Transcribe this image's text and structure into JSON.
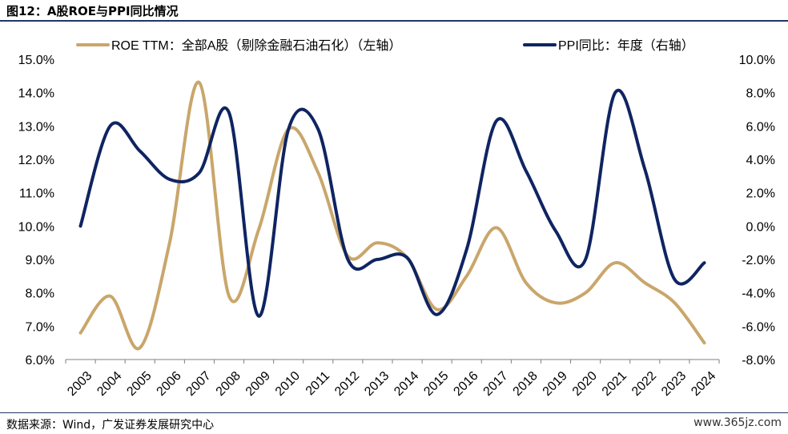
{
  "title": "图12：A股ROE与PPI同比情况",
  "source": "数据来源：Wind，广发证券发展研究中心",
  "watermark": "www.365jz.com",
  "chart_data": {
    "type": "line",
    "x": [
      "2003",
      "2004",
      "2005",
      "2006",
      "2007",
      "2008",
      "2009",
      "2010",
      "2011",
      "2012",
      "2013",
      "2014",
      "2015",
      "2016",
      "2017",
      "2018",
      "2019",
      "2020",
      "2021",
      "2022",
      "2023",
      "2024"
    ],
    "y_left": {
      "lim": [
        6.0,
        15.0
      ],
      "ticks": [
        "6.0%",
        "7.0%",
        "8.0%",
        "9.0%",
        "10.0%",
        "11.0%",
        "12.0%",
        "13.0%",
        "14.0%",
        "15.0%"
      ]
    },
    "y_right": {
      "lim": [
        -8.0,
        10.0
      ],
      "ticks": [
        "-8.0%",
        "-6.0%",
        "-4.0%",
        "-2.0%",
        "0.0%",
        "2.0%",
        "4.0%",
        "6.0%",
        "8.0%",
        "10.0%"
      ]
    },
    "series": [
      {
        "name": "ROE TTM：全部A股（剔除金融石油石化）（左轴）",
        "axis": "left",
        "color": "#c9a66b",
        "values": [
          6.8,
          7.9,
          6.35,
          9.5,
          14.3,
          7.9,
          9.9,
          12.9,
          11.6,
          9.1,
          9.5,
          9.05,
          7.5,
          8.5,
          9.95,
          8.3,
          7.7,
          8.0,
          8.9,
          8.3,
          7.7,
          6.5
        ]
      },
      {
        "name": "PPI同比：年度（右轴）",
        "axis": "right",
        "color": "#0f2461",
        "values": [
          0.0,
          6.0,
          4.5,
          2.8,
          3.2,
          6.8,
          -5.4,
          5.8,
          5.8,
          -2.0,
          -2.0,
          -1.9,
          -5.3,
          -1.4,
          6.3,
          3.3,
          -0.3,
          -2.0,
          8.0,
          3.4,
          -3.2,
          -2.2
        ]
      }
    ]
  }
}
